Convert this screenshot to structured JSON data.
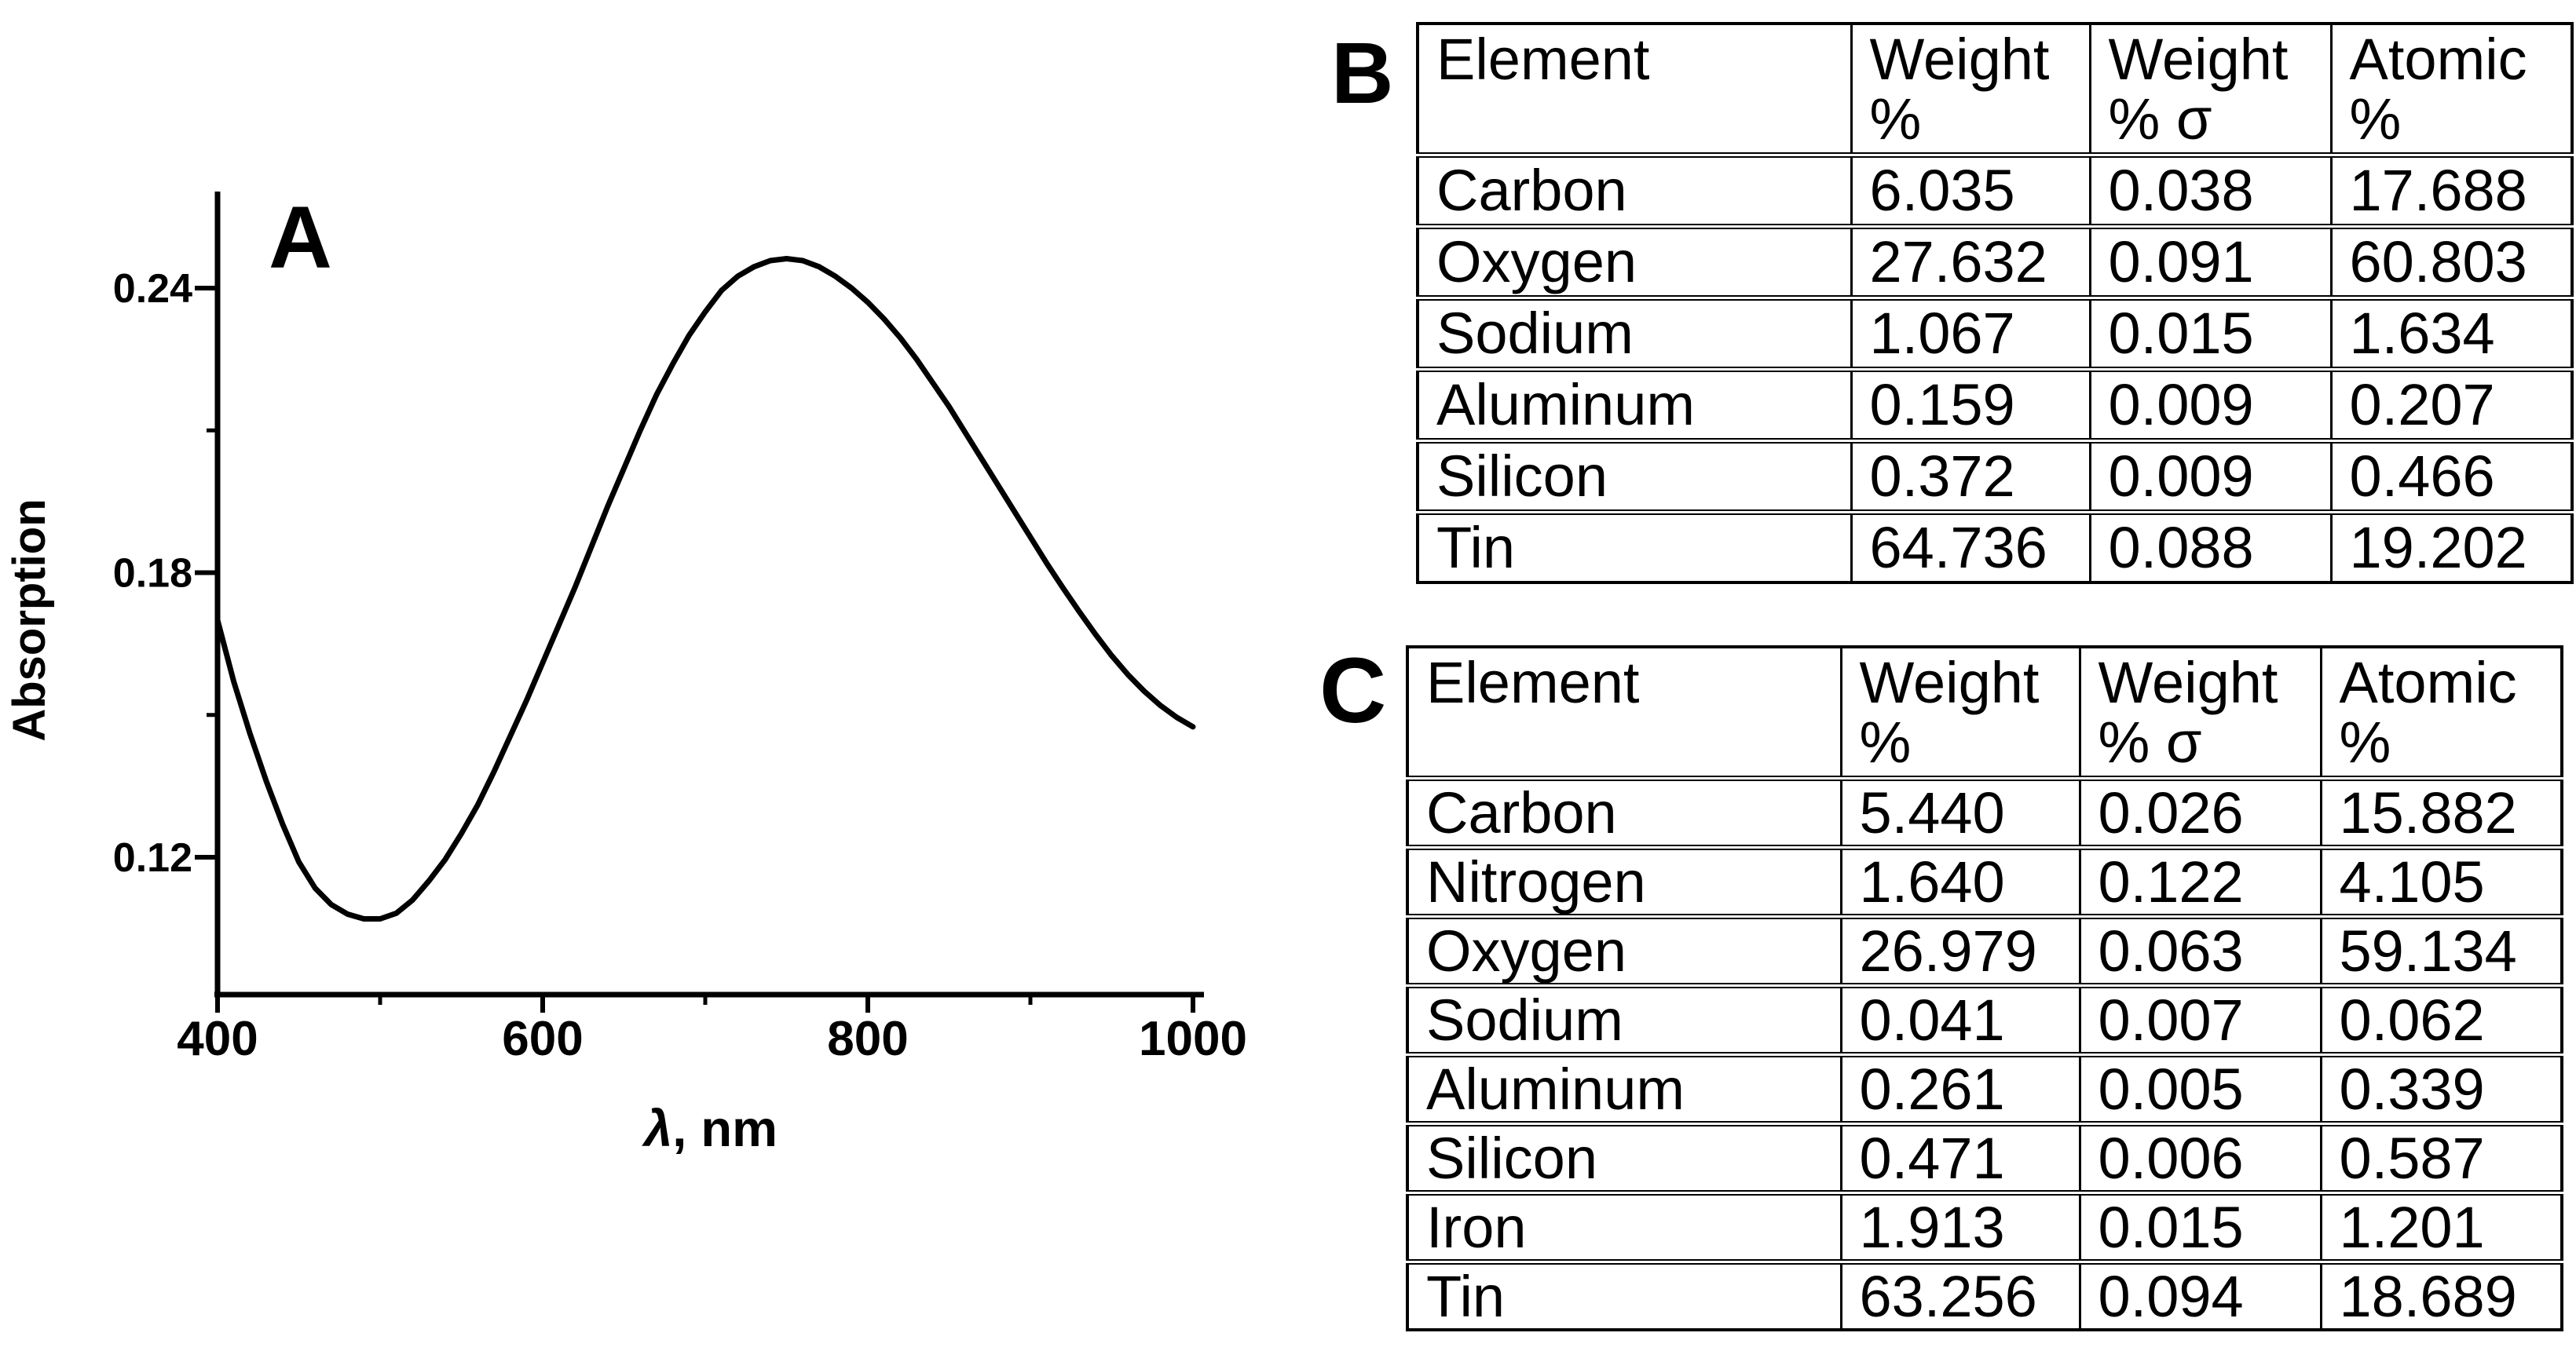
{
  "figure": {
    "background": "#ffffff",
    "ink": "#000000"
  },
  "panel_a": {
    "label": "A",
    "ylabel": "Absorption",
    "xlabel": "λ, nm"
  },
  "chart_data": {
    "type": "line",
    "title": "",
    "xlabel": "λ, nm",
    "ylabel": "Absorption",
    "xlim": [
      400,
      1010
    ],
    "ylim": [
      0.091,
      0.26
    ],
    "grid": false,
    "legend": false,
    "x_ticks": [
      400,
      600,
      800,
      1000
    ],
    "x_tick_labels": [
      "400",
      "600",
      "800",
      "1000"
    ],
    "x_minor_ticks": [
      500,
      700,
      900
    ],
    "y_ticks": [
      0.24,
      0.18,
      0.12
    ],
    "y_tick_labels": [
      "0.24",
      "0.18",
      "0.12"
    ],
    "y_minor_ticks": [
      0.21,
      0.15
    ],
    "series": [
      {
        "name": "absorption spectrum",
        "x": [
          400,
          410,
          420,
          430,
          440,
          450,
          460,
          470,
          480,
          490,
          500,
          510,
          520,
          530,
          540,
          550,
          560,
          570,
          580,
          590,
          600,
          610,
          620,
          630,
          640,
          650,
          660,
          670,
          680,
          690,
          700,
          710,
          720,
          730,
          740,
          750,
          760,
          770,
          780,
          790,
          800,
          810,
          820,
          830,
          840,
          850,
          860,
          870,
          880,
          890,
          900,
          910,
          920,
          930,
          940,
          950,
          960,
          970,
          980,
          990,
          1000
        ],
        "y": [
          0.17,
          0.157,
          0.146,
          0.136,
          0.127,
          0.119,
          0.1135,
          0.11,
          0.108,
          0.107,
          0.107,
          0.1082,
          0.111,
          0.115,
          0.1195,
          0.125,
          0.131,
          0.138,
          0.1455,
          0.153,
          0.161,
          0.169,
          0.177,
          0.1855,
          0.194,
          0.202,
          0.21,
          0.2175,
          0.224,
          0.23,
          0.235,
          0.2395,
          0.2425,
          0.2445,
          0.2458,
          0.2462,
          0.2458,
          0.2445,
          0.2425,
          0.24,
          0.237,
          0.2335,
          0.2295,
          0.225,
          0.22,
          0.215,
          0.2095,
          0.204,
          0.1985,
          0.193,
          0.1875,
          0.182,
          0.1768,
          0.1718,
          0.167,
          0.1625,
          0.1585,
          0.155,
          0.152,
          0.1495,
          0.1475
        ]
      }
    ],
    "annotations": {
      "min_point": {
        "x": 497,
        "y": 0.107
      },
      "max_point": {
        "x": 750,
        "y": 0.246
      }
    }
  },
  "tables": [
    {
      "label": "B",
      "headers": [
        "Element",
        "Weight %",
        "Weight % σ",
        "Atomic %"
      ],
      "rows": [
        [
          "Carbon",
          "6.035",
          "0.038",
          "17.688"
        ],
        [
          "Oxygen",
          "27.632",
          "0.091",
          "60.803"
        ],
        [
          "Sodium",
          "1.067",
          "0.015",
          "1.634"
        ],
        [
          "Aluminum",
          "0.159",
          "0.009",
          "0.207"
        ],
        [
          "Silicon",
          "0.372",
          "0.009",
          "0.466"
        ],
        [
          "Tin",
          "64.736",
          "0.088",
          "19.202"
        ]
      ]
    },
    {
      "label": "C",
      "headers": [
        "Element",
        "Weight %",
        "Weight % σ",
        "Atomic %"
      ],
      "rows": [
        [
          "Carbon",
          "5.440",
          "0.026",
          "15.882"
        ],
        [
          "Nitrogen",
          "1.640",
          "0.122",
          "4.105"
        ],
        [
          "Oxygen",
          "26.979",
          "0.063",
          "59.134"
        ],
        [
          "Sodium",
          "0.041",
          "0.007",
          "0.062"
        ],
        [
          "Aluminum",
          "0.261",
          "0.005",
          "0.339"
        ],
        [
          "Silicon",
          "0.471",
          "0.006",
          "0.587"
        ],
        [
          "Iron",
          "1.913",
          "0.015",
          "1.201"
        ],
        [
          "Tin",
          "63.256",
          "0.094",
          "18.689"
        ]
      ]
    }
  ]
}
